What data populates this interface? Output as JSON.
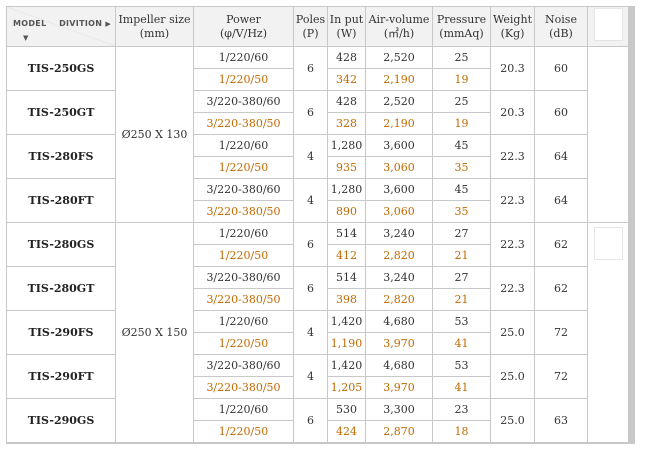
{
  "headers": {
    "model": "MODEL",
    "divition": "DIVITION",
    "impeller_size": [
      "Impeller size",
      "(mm)"
    ],
    "power": [
      "Power",
      "(φ/V/Hz)"
    ],
    "poles": [
      "Poles",
      "(P)"
    ],
    "input": [
      "In put",
      "(W)"
    ],
    "air_volume": [
      "Air-volume",
      "(㎥/h)"
    ],
    "pressure": [
      "Pressure",
      "(mmAq)"
    ],
    "weight": [
      "Weight",
      "(Kg)"
    ],
    "noise": [
      "Noise",
      "(dB)"
    ]
  },
  "impeller_groups": [
    "Ø250 X 130",
    "Ø250 X 150"
  ],
  "models": [
    {
      "name": "TIS-250GS",
      "poles": "6",
      "weight": "20.3",
      "noise": "60",
      "a": {
        "power": "1/220/60",
        "input": "428",
        "air": "2,520",
        "pressure": "25"
      },
      "b": {
        "power": "1/220/50",
        "input": "342",
        "air": "2,190",
        "pressure": "19"
      }
    },
    {
      "name": "TIS-250GT",
      "poles": "6",
      "weight": "20.3",
      "noise": "60",
      "a": {
        "power": "3/220-380/60",
        "input": "428",
        "air": "2,520",
        "pressure": "25"
      },
      "b": {
        "power": "3/220-380/50",
        "input": "328",
        "air": "2,190",
        "pressure": "19"
      }
    },
    {
      "name": "TIS-280FS",
      "poles": "4",
      "weight": "22.3",
      "noise": "64",
      "a": {
        "power": "1/220/60",
        "input": "1,280",
        "air": "3,600",
        "pressure": "45"
      },
      "b": {
        "power": "1/220/50",
        "input": "935",
        "air": "3,060",
        "pressure": "35"
      }
    },
    {
      "name": "TIS-280FT",
      "poles": "4",
      "weight": "22.3",
      "noise": "64",
      "a": {
        "power": "3/220-380/60",
        "input": "1,280",
        "air": "3,600",
        "pressure": "45"
      },
      "b": {
        "power": "3/220-380/50",
        "input": "890",
        "air": "3,060",
        "pressure": "35"
      }
    },
    {
      "name": "TIS-280GS",
      "poles": "6",
      "weight": "22.3",
      "noise": "62",
      "a": {
        "power": "1/220/60",
        "input": "514",
        "air": "3,240",
        "pressure": "27"
      },
      "b": {
        "power": "1/220/50",
        "input": "412",
        "air": "2,820",
        "pressure": "21"
      }
    },
    {
      "name": "TIS-280GT",
      "poles": "6",
      "weight": "22.3",
      "noise": "62",
      "a": {
        "power": "3/220-380/60",
        "input": "514",
        "air": "3,240",
        "pressure": "27"
      },
      "b": {
        "power": "3/220-380/50",
        "input": "398",
        "air": "2,820",
        "pressure": "21"
      }
    },
    {
      "name": "TIS-290FS",
      "poles": "4",
      "weight": "25.0",
      "noise": "72",
      "a": {
        "power": "1/220/60",
        "input": "1,420",
        "air": "4,680",
        "pressure": "53"
      },
      "b": {
        "power": "1/220/50",
        "input": "1,190",
        "air": "3,970",
        "pressure": "41"
      }
    },
    {
      "name": "TIS-290FT",
      "poles": "4",
      "weight": "25.0",
      "noise": "72",
      "a": {
        "power": "3/220-380/60",
        "input": "1,420",
        "air": "4,680",
        "pressure": "53"
      },
      "b": {
        "power": "3/220-380/50",
        "input": "1,205",
        "air": "3,970",
        "pressure": "41"
      }
    },
    {
      "name": "TIS-290GS",
      "poles": "6",
      "weight": "25.0",
      "noise": "63",
      "a": {
        "power": "1/220/60",
        "input": "530",
        "air": "3,300",
        "pressure": "23"
      },
      "b": {
        "power": "1/220/50",
        "input": "424",
        "air": "2,870",
        "pressure": "18"
      }
    }
  ],
  "colors": {
    "row_alt_text": "#c06a00",
    "header_bg": "#f2f2f2",
    "grid": "#c8c8c8"
  }
}
